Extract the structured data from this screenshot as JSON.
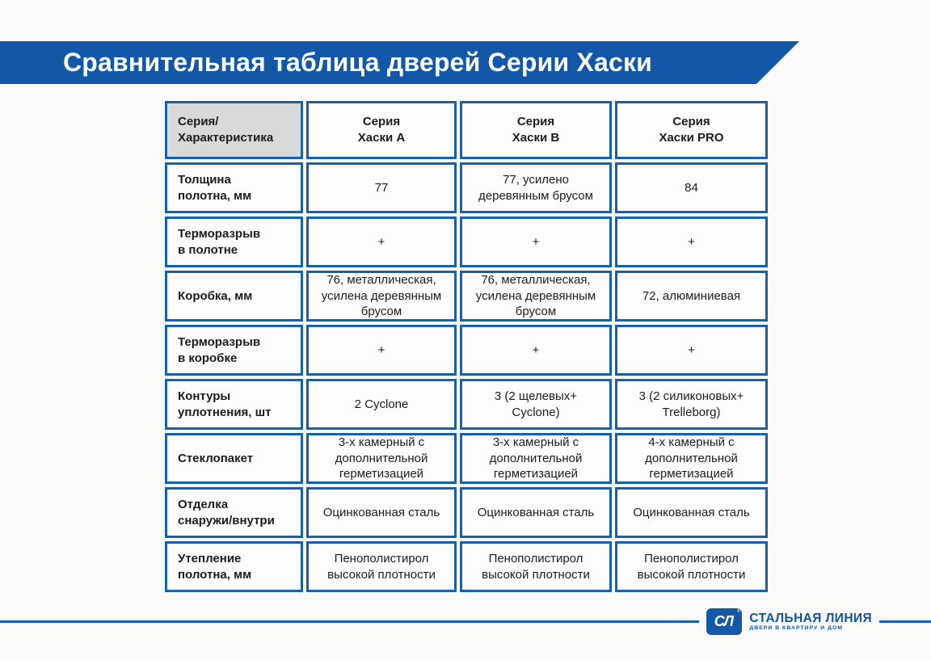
{
  "title": "Сравнительная таблица дверей Серии Хаски",
  "table": {
    "corner": "Серия/\nХарактеристика",
    "columns": [
      "Серия\nХаски А",
      "Серия\nХаски В",
      "Серия\nХаски PRO"
    ],
    "rows": [
      {
        "label": "Толщина\nполотна, мм",
        "values": [
          "77",
          "77, усилено\nдеревянным брусом",
          "84"
        ]
      },
      {
        "label": "Терморазрыв\nв полотне",
        "values": [
          "+",
          "+",
          "+"
        ]
      },
      {
        "label": "Коробка, мм",
        "values": [
          "76, металлическая,\nусилена деревянным\nбрусом",
          "76, металлическая,\nусилена деревянным\nбрусом",
          "72, алюминиевая"
        ]
      },
      {
        "label": "Терморазрыв\nв коробке",
        "values": [
          "+",
          "+",
          "+"
        ]
      },
      {
        "label": "Контуры\nуплотнения, шт",
        "values": [
          "2 Cyclone",
          "3 (2 щелевых+\nCyclone)",
          "3 (2 силиконовых+\nTrelleborg)"
        ]
      },
      {
        "label": "Стеклопакет",
        "values": [
          "3-х камерный с\nдополнительной\nгерметизацией",
          "3-х камерный с\nдополнительной\nгерметизацией",
          "4-х камерный с\nдополнительной\nгерметизацией"
        ]
      },
      {
        "label": "Отделка\nснаружи/внутри",
        "values": [
          "Оцинкованная сталь",
          "Оцинкованная сталь",
          "Оцинкованная сталь"
        ]
      },
      {
        "label": "Утепление\nполотна, мм",
        "values": [
          "Пенополистирол\nвысокой плотности",
          "Пенополистирол\nвысокой плотности",
          "Пенополистирол\nвысокой плотности"
        ]
      }
    ]
  },
  "footer": {
    "logo_monogram": "СЛ",
    "registered_mark": "®",
    "brand": "СТАЛЬНАЯ ЛИНИЯ",
    "tagline": "ДВЕРИ В КВАРТИРУ И ДОМ"
  },
  "colors": {
    "banner_blue": "#1358a8",
    "border_blue": "#1561ac",
    "header_gray": "#d9d9d9"
  }
}
